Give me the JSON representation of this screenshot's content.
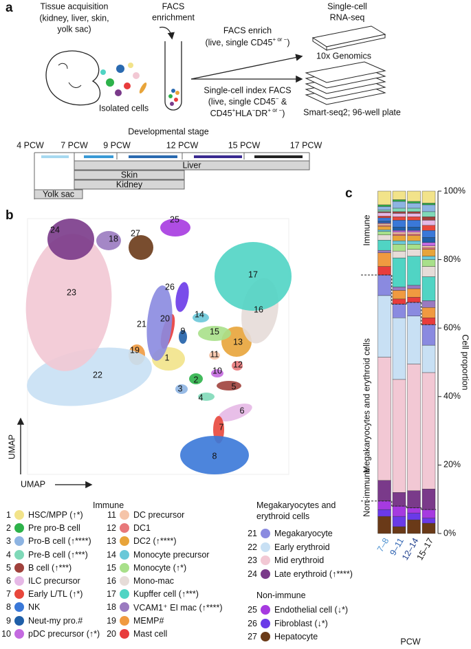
{
  "panel_a": {
    "label": "a",
    "tissue_acquisition": [
      "Tissue acquisition",
      "(kidney, liver, skin,",
      "yolk sac)"
    ],
    "facs_enrichment": [
      "FACS",
      "enrichment"
    ],
    "isolated_cells": "Isolated cells",
    "facs_enrich": {
      "title": "FACS enrich",
      "line": [
        "(live, single CD45",
        "+ or −",
        ")"
      ]
    },
    "index_facs": {
      "title": "Single-cell index FACS",
      "line1": [
        "(live, single CD45",
        "−",
        " &"
      ],
      "line2": [
        "CD45",
        "+",
        "HLA",
        "−",
        "DR",
        "+ or −",
        ")"
      ]
    },
    "rna_seq": [
      "Single-cell",
      "RNA-seq"
    ],
    "genomics": "10x Genomics",
    "smart_seq": "Smart-seq2; 96-well plate",
    "timeline": {
      "title": "Developmental stage",
      "ticks": [
        "4 PCW",
        "7 PCW",
        "9 PCW",
        "12 PCW",
        "15 PCW",
        "17 PCW"
      ],
      "tissues": [
        "Liver",
        "Skin",
        "Kidney",
        "Yolk sac"
      ]
    }
  },
  "panel_b": {
    "label": "b",
    "axis_x": "UMAP",
    "axis_y": "UMAP"
  },
  "panel_c": {
    "label": "c"
  },
  "chart_data": {
    "type": "bar",
    "stacked": true,
    "categories": [
      "7–8",
      "9–11",
      "12–14",
      "15–17"
    ],
    "category_colors": [
      "#4a90d0",
      "#2a60b0",
      "#1a3a8a",
      "#111111"
    ],
    "x_label": "PCW",
    "y_label": "Cell proportion",
    "ylim": [
      0,
      100
    ],
    "yticks": [
      {
        "value": 0,
        "label": "0%"
      },
      {
        "value": 20,
        "label": "20%"
      },
      {
        "value": 40,
        "label": "40%"
      },
      {
        "value": 60,
        "label": "60%"
      },
      {
        "value": 80,
        "label": "80%"
      },
      {
        "value": 100,
        "label": "100%"
      }
    ],
    "groups": [
      {
        "name": "Immune",
        "series": [
          {
            "number": 1,
            "name": "HSC/MPP (↑*)",
            "color": "#f2e38a",
            "values": [
              4,
              2.5,
              3,
              3.5
            ]
          },
          {
            "number": 2,
            "name": "Pre pro-B cell",
            "color": "#2db24a",
            "values": [
              0.5,
              0.5,
              0.5,
              0.5
            ]
          },
          {
            "number": 3,
            "name": "Pro-B cell (↑****)",
            "color": "#8db4e2",
            "values": [
              1,
              2,
              1.5,
              2
            ]
          },
          {
            "number": 4,
            "name": "Pre-B cell (↑***)",
            "color": "#7fd9b8",
            "values": [
              0.5,
              1,
              1,
              1.5
            ]
          },
          {
            "number": 5,
            "name": "B cell (↑***)",
            "color": "#a0413c",
            "values": [
              0.3,
              0.5,
              0.5,
              1
            ]
          },
          {
            "number": 6,
            "name": "ILC precursor",
            "color": "#e6b8e6",
            "values": [
              1,
              1,
              1,
              1.5
            ]
          },
          {
            "number": 7,
            "name": "Early L/TL (↑*)",
            "color": "#e8473c",
            "values": [
              0.5,
              1,
              1,
              1.5
            ]
          },
          {
            "number": 8,
            "name": "NK",
            "color": "#3a78d8",
            "values": [
              1,
              2,
              2,
              2
            ]
          },
          {
            "number": 9,
            "name": "Neut-my pro.#",
            "color": "#1f5fa8",
            "values": [
              0.5,
              1,
              1,
              1.5
            ]
          },
          {
            "number": 10,
            "name": "pDC precursor (↑*)",
            "color": "#c46ae0",
            "values": [
              0.2,
              0.5,
              0.5,
              1
            ]
          },
          {
            "number": 11,
            "name": "DC precursor",
            "color": "#f5c4a8",
            "values": [
              0.5,
              0.5,
              0.5,
              0.5
            ]
          },
          {
            "number": 12,
            "name": "DC1",
            "color": "#e8787a",
            "values": [
              0.3,
              0.5,
              0.5,
              0.5
            ]
          },
          {
            "number": 13,
            "name": "DC2 (↑****)",
            "color": "#e8a43a",
            "values": [
              1,
              1.5,
              1.5,
              2
            ]
          },
          {
            "number": 14,
            "name": "Monocyte precursor",
            "color": "#6ac8d8",
            "values": [
              0.5,
              1,
              1,
              1
            ]
          },
          {
            "number": 15,
            "name": "Monocyte (↑*)",
            "color": "#a8e08a",
            "values": [
              1,
              2,
              1.5,
              2
            ]
          },
          {
            "number": 16,
            "name": "Mono-mac",
            "color": "#e6dcd8",
            "values": [
              1.5,
              2,
              2,
              3
            ]
          },
          {
            "number": 17,
            "name": "Kupffer cell (↑***)",
            "color": "#50d4c4",
            "values": [
              3,
              8.5,
              8.5,
              7
            ]
          },
          {
            "number": 18,
            "name": "VCAM1⁺ EI mac (↑****)",
            "color": "#9a7ac0",
            "values": [
              0.7,
              1,
              1,
              2
            ]
          },
          {
            "number": 19,
            "name": "MEMP#",
            "color": "#f09a40",
            "values": [
              4,
              2.5,
              2.5,
              3
            ]
          },
          {
            "number": 20,
            "name": "Mast cell",
            "color": "#e83c3c",
            "values": [
              2.5,
              1.5,
              1.5,
              2
            ]
          }
        ]
      },
      {
        "name": "Megakaryocytes and erythroid cells",
        "series": [
          {
            "number": 21,
            "name": "Megakaryocyte",
            "color": "#8a8ae0",
            "values": [
              6,
              4,
              4,
              6
            ]
          },
          {
            "number": 22,
            "name": "Early erythroid",
            "color": "#c8e0f4",
            "values": [
              18,
              18,
              14,
              8
            ]
          },
          {
            "number": 23,
            "name": "Mid erythroid",
            "color": "#f2c8d4",
            "values": [
              36,
              33,
              37,
              34
            ]
          },
          {
            "number": 24,
            "name": "Late erythroid (↑****)",
            "color": "#7a3a8a",
            "values": [
              6,
              4,
              5,
              6
            ]
          }
        ]
      },
      {
        "name": "Non-immune",
        "series": [
          {
            "number": 25,
            "name": "Endothelial cell (↓*)",
            "color": "#a63ae0",
            "values": [
              2.5,
              3,
              1.5,
              2.5
            ]
          },
          {
            "number": 26,
            "name": "Fibroblast (↓*)",
            "color": "#6a3ae8",
            "values": [
              2,
              3,
              2,
              1.5
            ]
          },
          {
            "number": 27,
            "name": "Hepatocyte",
            "color": "#6a3a18",
            "values": [
              5,
              2,
              4,
              3
            ]
          }
        ]
      }
    ]
  }
}
